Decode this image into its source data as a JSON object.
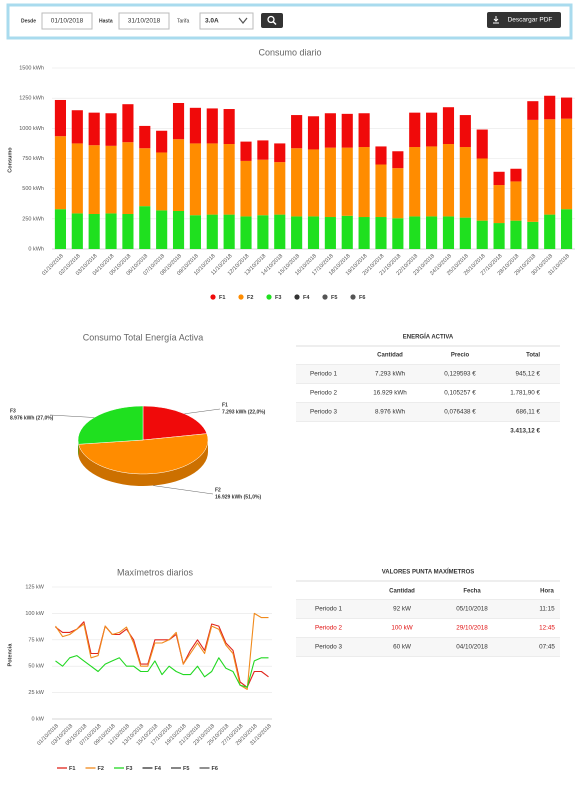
{
  "toolbar": {
    "from_label": "Desde",
    "from": "01/10/2018",
    "to_label": "Hasta",
    "to": "31/10/2018",
    "tariff_label": "Tarifa",
    "tariff": "3.0A",
    "pdf_button": "Descargar PDF"
  },
  "chart_data": [
    {
      "type": "bar",
      "title": "Consumo diario",
      "y_label": "Consumo",
      "categories": [
        "01/10/2018",
        "02/10/2018",
        "03/10/2018",
        "04/10/2018",
        "05/10/2018",
        "06/10/2018",
        "07/10/2018",
        "08/10/2018",
        "09/10/2018",
        "10/10/2018",
        "11/10/2018",
        "12/10/2018",
        "13/10/2018",
        "14/10/2018",
        "15/10/2018",
        "16/10/2018",
        "17/10/2018",
        "18/10/2018",
        "19/10/2018",
        "20/10/2018",
        "21/10/2018",
        "22/10/2018",
        "23/10/2018",
        "24/10/2018",
        "25/10/2018",
        "26/10/2018",
        "27/10/2018",
        "28/10/2018",
        "29/10/2018",
        "30/10/2018",
        "31/10/2018"
      ],
      "series": [
        {
          "name": "F3",
          "color": "#1fe01f",
          "values": [
            330,
            295,
            290,
            295,
            290,
            355,
            320,
            315,
            280,
            285,
            285,
            270,
            280,
            285,
            270,
            270,
            265,
            275,
            265,
            265,
            255,
            270,
            270,
            270,
            260,
            235,
            215,
            235,
            225,
            285,
            330
          ]
        },
        {
          "name": "F2",
          "color": "#ff8c00",
          "values": [
            605,
            580,
            570,
            560,
            595,
            480,
            480,
            595,
            595,
            590,
            585,
            460,
            460,
            435,
            565,
            555,
            575,
            565,
            580,
            435,
            415,
            575,
            580,
            600,
            585,
            515,
            315,
            325,
            845,
            790,
            750
          ]
        },
        {
          "name": "F1",
          "color": "#f00a0a",
          "values": [
            300,
            275,
            270,
            270,
            315,
            185,
            180,
            300,
            295,
            290,
            290,
            160,
            160,
            155,
            275,
            275,
            285,
            280,
            280,
            150,
            140,
            285,
            280,
            305,
            265,
            240,
            110,
            105,
            155,
            195,
            175
          ]
        },
        {
          "name": "F4",
          "color": "#333333",
          "values": [
            null,
            null,
            null,
            null,
            null,
            null,
            null,
            null,
            null,
            null,
            null,
            null,
            null,
            null,
            null,
            null,
            null,
            null,
            null,
            null,
            null,
            null,
            null,
            null,
            null,
            null,
            null,
            null,
            null,
            null,
            null
          ]
        },
        {
          "name": "F5",
          "color": "#555555",
          "values": [
            null,
            null,
            null,
            null,
            null,
            null,
            null,
            null,
            null,
            null,
            null,
            null,
            null,
            null,
            null,
            null,
            null,
            null,
            null,
            null,
            null,
            null,
            null,
            null,
            null,
            null,
            null,
            null,
            null,
            null,
            null
          ]
        },
        {
          "name": "F6",
          "color": "#555555",
          "values": [
            null,
            null,
            null,
            null,
            null,
            null,
            null,
            null,
            null,
            null,
            null,
            null,
            null,
            null,
            null,
            null,
            null,
            null,
            null,
            null,
            null,
            null,
            null,
            null,
            null,
            null,
            null,
            null,
            null,
            null,
            null
          ]
        }
      ],
      "legend_order": [
        "F1",
        "F2",
        "F3",
        "F4",
        "F5",
        "F6"
      ],
      "ylim": [
        0,
        1500
      ],
      "yticks": [
        {
          "value": 0,
          "label": "0 kWh"
        },
        {
          "value": 250,
          "label": "250 kWh"
        },
        {
          "value": 500,
          "label": "500 kWh"
        },
        {
          "value": 750,
          "label": "750 kWh"
        },
        {
          "value": 1000,
          "label": "1000 kWh"
        },
        {
          "value": 1250,
          "label": "1250 kWh"
        },
        {
          "value": 1500,
          "label": "1500 kWh"
        }
      ],
      "grid": true
    },
    {
      "type": "pie",
      "title": "Consumo Total Energía Activa",
      "labels": [
        "F1",
        "F2",
        "F3"
      ],
      "values": [
        22.0,
        51.0,
        27.0
      ],
      "value_labels": [
        "7.293 kWh (22,0%)",
        "16.929 kWh (51,0%)",
        "8.976 kWh (27,0%)"
      ],
      "colors": [
        "#f00a0a",
        "#ff8c00",
        "#1fe01f"
      ]
    },
    {
      "type": "line",
      "title": "Maxímetros diarios",
      "y_label": "Potencia",
      "categories": [
        "01/10/2018",
        null,
        "03/10/2018",
        null,
        "05/10/2018",
        null,
        "07/10/2018",
        null,
        "09/10/2018",
        null,
        "11/10/2018",
        null,
        "13/10/2018",
        null,
        "15/10/2018",
        null,
        "17/10/2018",
        null,
        "19/10/2018",
        null,
        "21/10/2018",
        null,
        "23/10/2018",
        null,
        "25/10/2018",
        null,
        "27/10/2018",
        null,
        "29/10/2018",
        null,
        "31/10/2018"
      ],
      "series": [
        {
          "name": "F1",
          "color": "#e0261c",
          "values": [
            87,
            82,
            82,
            85,
            92,
            62,
            62,
            88,
            80,
            80,
            85,
            75,
            52,
            52,
            75,
            75,
            75,
            80,
            52,
            65,
            75,
            65,
            90,
            88,
            72,
            65,
            35,
            30,
            45,
            45,
            40
          ]
        },
        {
          "name": "F2",
          "color": "#f08a1c",
          "values": [
            88,
            78,
            80,
            85,
            90,
            58,
            60,
            88,
            80,
            82,
            87,
            72,
            50,
            50,
            72,
            72,
            75,
            82,
            52,
            62,
            72,
            62,
            88,
            85,
            70,
            62,
            32,
            28,
            100,
            96,
            96
          ]
        },
        {
          "name": "F3",
          "color": "#22d822",
          "values": [
            55,
            50,
            58,
            60,
            55,
            50,
            45,
            52,
            55,
            58,
            50,
            50,
            45,
            45,
            55,
            42,
            50,
            45,
            42,
            42,
            50,
            40,
            45,
            58,
            48,
            45,
            32,
            30,
            55,
            58,
            58
          ]
        },
        {
          "name": "F4",
          "color": "#333333",
          "values": [
            null,
            null,
            null,
            null,
            null,
            null,
            null,
            null,
            null,
            null,
            null,
            null,
            null,
            null,
            null,
            null,
            null,
            null,
            null,
            null,
            null,
            null,
            null,
            null,
            null,
            null,
            null,
            null,
            null,
            null,
            null
          ]
        },
        {
          "name": "F5",
          "color": "#444444",
          "values": [
            null,
            null,
            null,
            null,
            null,
            null,
            null,
            null,
            null,
            null,
            null,
            null,
            null,
            null,
            null,
            null,
            null,
            null,
            null,
            null,
            null,
            null,
            null,
            null,
            null,
            null,
            null,
            null,
            null,
            null,
            null
          ]
        },
        {
          "name": "F6",
          "color": "#555555",
          "values": [
            null,
            null,
            null,
            null,
            null,
            null,
            null,
            null,
            null,
            null,
            null,
            null,
            null,
            null,
            null,
            null,
            null,
            null,
            null,
            null,
            null,
            null,
            null,
            null,
            null,
            null,
            null,
            null,
            null,
            null,
            null
          ]
        }
      ],
      "ylim": [
        0,
        125
      ],
      "yticks": [
        {
          "value": 0,
          "label": "0 kW"
        },
        {
          "value": 25,
          "label": "25 kW"
        },
        {
          "value": 50,
          "label": "50 kW"
        },
        {
          "value": 75,
          "label": "75 kW"
        },
        {
          "value": 100,
          "label": "100 kW"
        },
        {
          "value": 125,
          "label": "125 kW"
        }
      ],
      "grid": true
    }
  ],
  "tables": [
    {
      "title": "ENERGÍA ACTIVA",
      "headers": [
        "Cantidad",
        "Precio",
        "Total"
      ],
      "rows": [
        {
          "cells": [
            "Periodo 1",
            "7.293 kWh",
            "0,129593 €",
            "945,12 €"
          ]
        },
        {
          "cells": [
            "Periodo 2",
            "16.929 kWh",
            "0,105257 €",
            "1.781,90 €"
          ]
        },
        {
          "cells": [
            "Periodo 3",
            "8.976 kWh",
            "0,076438 €",
            "686,11 €"
          ]
        }
      ],
      "total": "3.413,12 €"
    },
    {
      "title": "VALORES PUNTA MAXÍMETROS",
      "headers": [
        "Cantidad",
        "Fecha",
        "Hora"
      ],
      "rows": [
        {
          "cells": [
            "Periodo 1",
            "92 kW",
            "05/10/2018",
            "11:15"
          ]
        },
        {
          "cells": [
            "Periodo 2",
            "100 kW",
            "29/10/2018",
            "12:45"
          ],
          "color": "#e01010"
        },
        {
          "cells": [
            "Periodo 3",
            "60 kW",
            "04/10/2018",
            "07:45"
          ]
        }
      ]
    }
  ]
}
